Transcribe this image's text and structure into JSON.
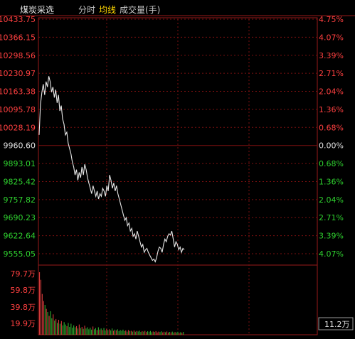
{
  "header": {
    "title": "煤炭采选",
    "tabs": [
      {
        "label": "分时",
        "active": false
      },
      {
        "label": "均线",
        "active": true
      },
      {
        "label": "成交量(手)",
        "active": false
      }
    ]
  },
  "colors": {
    "up": "#ff4040",
    "down": "#2fd12f",
    "neutral": "#e0e0e0",
    "grid": "#7a1010",
    "frame": "#9a1a1a",
    "line": "#e8e8e8",
    "avg": "#e8c24a",
    "title": "#e8e8e8",
    "tab": "#c8c8c8",
    "tab_active": "#ffd700"
  },
  "chart_data": {
    "type": "line",
    "base_price": 9960.6,
    "price_ticks": [
      "10433.75",
      "10366.15",
      "10298.56",
      "10230.97",
      "10163.38",
      "10095.78",
      "10028.19",
      "9960.60",
      "9893.01",
      "9825.42",
      "9757.82",
      "9690.23",
      "9622.64",
      "9555.05"
    ],
    "pct_ticks": [
      "4.75%",
      "4.07%",
      "3.39%",
      "2.71%",
      "2.04%",
      "1.36%",
      "0.68%",
      "0.00%",
      "0.68%",
      "1.36%",
      "2.04%",
      "2.71%",
      "3.39%",
      "4.07%"
    ],
    "ylim": [
      9555.05,
      10433.75
    ],
    "price_series": [
      10000,
      10115,
      10160,
      10190,
      10150,
      10200,
      10180,
      10220,
      10200,
      10160,
      10180,
      10140,
      10170,
      10120,
      10150,
      10090,
      10110,
      10060,
      10040,
      10000,
      10010,
      9970,
      9950,
      9930,
      9900,
      9880,
      9850,
      9870,
      9830,
      9860,
      9840,
      9880,
      9850,
      9890,
      9870,
      9840,
      9820,
      9800,
      9780,
      9810,
      9790,
      9770,
      9790,
      9760,
      9780,
      9770,
      9800,
      9790,
      9770,
      9810,
      9790,
      9850,
      9830,
      9800,
      9820,
      9790,
      9810,
      9780,
      9760,
      9740,
      9720,
      9700,
      9680,
      9690,
      9660,
      9670,
      9640,
      9650,
      9620,
      9630,
      9610,
      9640,
      9620,
      9600,
      9580,
      9590,
      9560,
      9570,
      9575,
      9560,
      9550,
      9540,
      9530,
      9535,
      9525,
      9540,
      9565,
      9580,
      9575,
      9560,
      9590,
      9610,
      9600,
      9620,
      9630,
      9625,
      9640,
      9610,
      9580,
      9600,
      9590,
      9570,
      9580,
      9560,
      9575,
      9570
    ],
    "volume_ticks": [
      "79.7万",
      "59.8万",
      "39.8万",
      "19.9万"
    ],
    "volume_max": 797000,
    "volume_readout": "11.2万",
    "volumes": [
      797000,
      700000,
      520000,
      430000,
      380000,
      330000,
      290000,
      240000,
      300000,
      210000,
      260000,
      180000,
      200000,
      150000,
      190000,
      140000,
      175000,
      120000,
      160000,
      130000,
      110000,
      150000,
      100000,
      140000,
      90000,
      120000,
      95000,
      110000,
      80000,
      130000,
      85000,
      100000,
      75000,
      115000,
      80000,
      95000,
      70000,
      90000,
      65000,
      105000,
      70000,
      85000,
      60000,
      95000,
      65000,
      80000,
      60000,
      85000,
      55000,
      75000,
      60000,
      70000,
      55000,
      80000,
      50000,
      65000,
      55000,
      70000,
      45000,
      60000,
      50000,
      65000,
      45000,
      55000,
      40000,
      60000,
      45000,
      50000,
      40000,
      55000,
      38000,
      48000,
      42000,
      52000,
      36000,
      46000,
      40000,
      50000,
      34000,
      44000,
      38000,
      48000,
      32000,
      42000,
      36000,
      46000,
      30000,
      40000,
      34000,
      44000,
      30000,
      38000,
      32000,
      42000,
      28000,
      36000,
      30000,
      40000,
      26000,
      34000,
      28000,
      38000,
      24000,
      32000,
      26000,
      36000
    ]
  }
}
